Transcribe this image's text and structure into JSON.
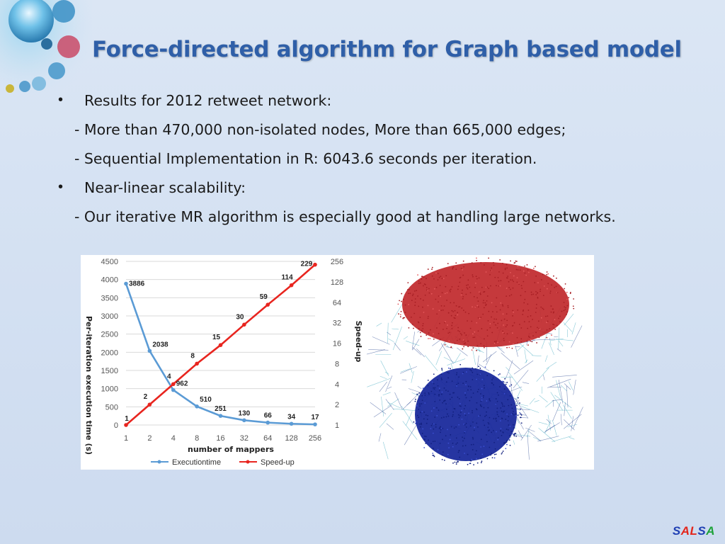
{
  "title": "Force-directed algorithm for Graph based model",
  "bullets": [
    {
      "text": "Results for 2012 retweet network:",
      "subs": [
        "- More than 470,000 non-isolated nodes, More than 665,000 edges;",
        "- Sequential Implementation in R: 6043.6 seconds per iteration."
      ]
    },
    {
      "text": "Near-linear scalability:",
      "subs": [
        "- Our iterative MR algorithm is especially good at handling large networks."
      ]
    }
  ],
  "bullet_symbol": "•",
  "chart_data": {
    "type": "line",
    "x": [
      1,
      2,
      4,
      8,
      16,
      32,
      64,
      128,
      256
    ],
    "xlabel": "number of mappers",
    "ylabel": "Per-iteration execution time (s)",
    "y2label": "Speed-up",
    "ylim": [
      0,
      4500
    ],
    "yticks": [
      0,
      500,
      1000,
      1500,
      2000,
      2500,
      3000,
      3500,
      4000,
      4500
    ],
    "y2scale": "log2",
    "y2ticks": [
      1,
      2,
      4,
      8,
      16,
      32,
      64,
      128,
      256
    ],
    "grid": true,
    "legend_position": "bottom",
    "series": [
      {
        "name": "Executiontime",
        "axis": "left",
        "color": "#5b9bd5",
        "values": [
          3886,
          2038,
          962,
          510,
          251,
          130,
          66,
          34,
          17
        ],
        "labels": [
          "3886",
          "2038",
          "962",
          "510",
          "251",
          "130",
          "66",
          "34",
          "17"
        ]
      },
      {
        "name": "Speed-up",
        "axis": "right",
        "color": "#e8251f",
        "values": [
          1,
          2,
          4,
          8,
          15,
          30,
          59,
          114,
          229
        ],
        "labels": [
          "1",
          "2",
          "4",
          "8",
          "15",
          "30",
          "59",
          "114",
          "229"
        ]
      }
    ]
  },
  "graph_colors": {
    "top_cluster": "#c0282b",
    "bottom_cluster": "#1a2a9c",
    "edges": "#2a9fb8"
  },
  "footer": {
    "brand_letters": [
      "S",
      "A",
      "L",
      "S",
      "A"
    ],
    "brand_colors": [
      "#1f3fb3",
      "#e3261c",
      "#e3261c",
      "#1f3fb3",
      "#1fa33a"
    ]
  }
}
